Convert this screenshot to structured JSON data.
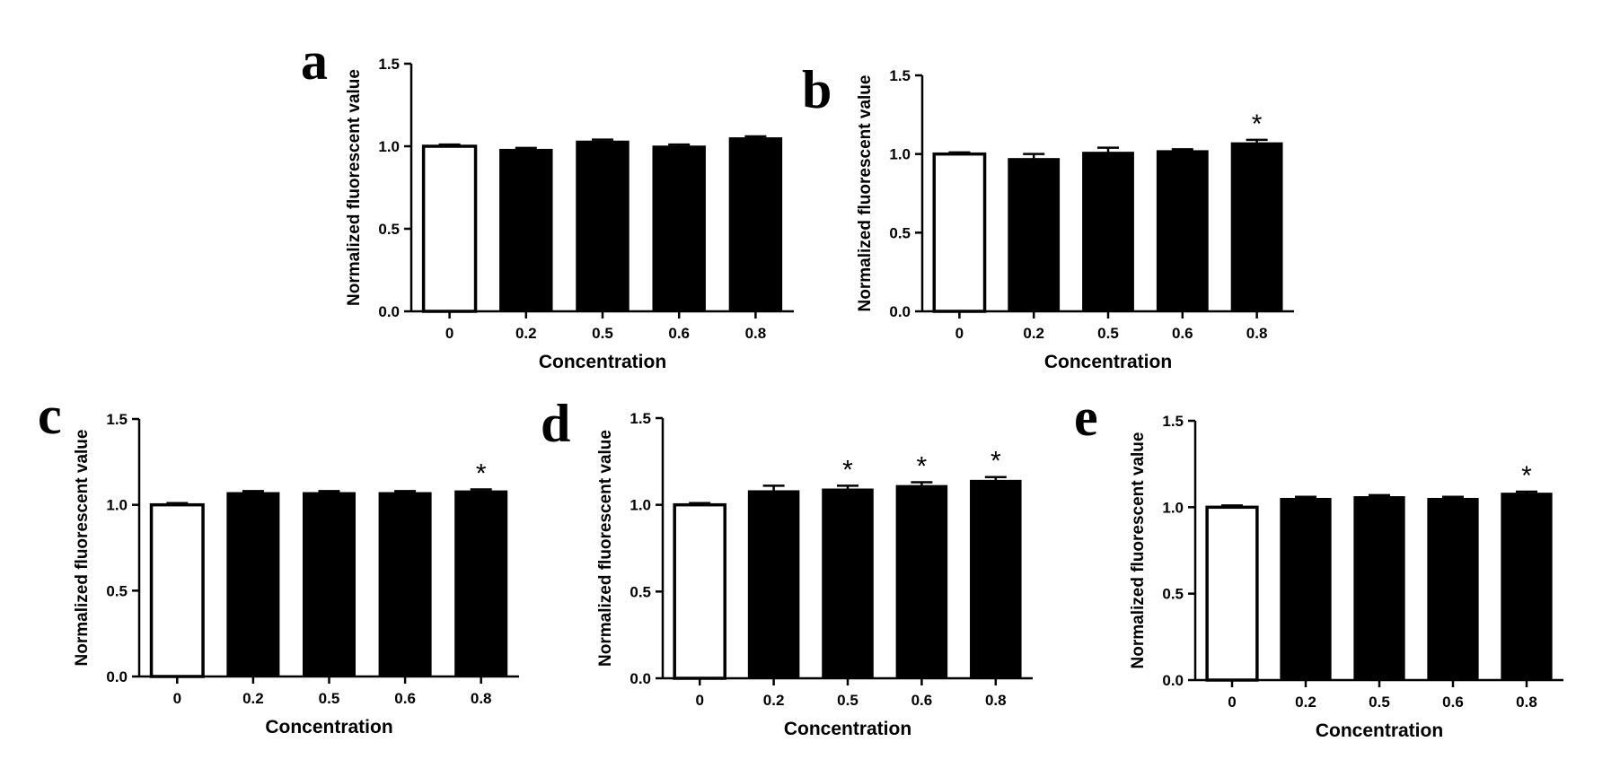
{
  "chart_data": [
    {
      "panel": "a",
      "type": "bar",
      "categories": [
        "0",
        "0.2",
        "0.5",
        "0.6",
        "0.8"
      ],
      "values": [
        1.0,
        0.98,
        1.03,
        1.0,
        1.05
      ],
      "errors": [
        0.01,
        0.01,
        0.01,
        0.01,
        0.01
      ],
      "significance": [
        "",
        "",
        "",
        "",
        ""
      ],
      "bar_colors": [
        "#ffffff",
        "#000000",
        "#000000",
        "#000000",
        "#000000"
      ],
      "xlabel": "Concentration",
      "ylabel": "Normalized fluorescent value",
      "ylim": [
        0,
        1.5
      ],
      "yticks": [
        "0.0",
        "0.5",
        "1.0",
        "1.5"
      ]
    },
    {
      "panel": "b",
      "type": "bar",
      "categories": [
        "0",
        "0.2",
        "0.5",
        "0.6",
        "0.8"
      ],
      "values": [
        1.0,
        0.97,
        1.01,
        1.02,
        1.07
      ],
      "errors": [
        0.01,
        0.03,
        0.03,
        0.01,
        0.02
      ],
      "significance": [
        "",
        "",
        "",
        "",
        "*"
      ],
      "bar_colors": [
        "#ffffff",
        "#000000",
        "#000000",
        "#000000",
        "#000000"
      ],
      "xlabel": "Concentration",
      "ylabel": "Normalized fluorescent value",
      "ylim": [
        0,
        1.5
      ],
      "yticks": [
        "0.0",
        "0.5",
        "1.0",
        "1.5"
      ]
    },
    {
      "panel": "c",
      "type": "bar",
      "categories": [
        "0",
        "0.2",
        "0.5",
        "0.6",
        "0.8"
      ],
      "values": [
        1.0,
        1.07,
        1.07,
        1.07,
        1.08
      ],
      "errors": [
        0.01,
        0.01,
        0.01,
        0.01,
        0.01
      ],
      "significance": [
        "",
        "",
        "",
        "",
        "*"
      ],
      "bar_colors": [
        "#ffffff",
        "#000000",
        "#000000",
        "#000000",
        "#000000"
      ],
      "xlabel": "Concentration",
      "ylabel": "Normalized fluorescent value",
      "ylim": [
        0,
        1.5
      ],
      "yticks": [
        "0.0",
        "0.5",
        "1.0",
        "1.5"
      ]
    },
    {
      "panel": "d",
      "type": "bar",
      "categories": [
        "0",
        "0.2",
        "0.5",
        "0.6",
        "0.8"
      ],
      "values": [
        1.0,
        1.08,
        1.09,
        1.11,
        1.14
      ],
      "errors": [
        0.01,
        0.03,
        0.02,
        0.02,
        0.02
      ],
      "significance": [
        "",
        "",
        "*",
        "*",
        "*"
      ],
      "bar_colors": [
        "#ffffff",
        "#000000",
        "#000000",
        "#000000",
        "#000000"
      ],
      "xlabel": "Concentration",
      "ylabel": "Normalized fluorescent value",
      "ylim": [
        0,
        1.5
      ],
      "yticks": [
        "0.0",
        "0.5",
        "1.0",
        "1.5"
      ]
    },
    {
      "panel": "e",
      "type": "bar",
      "categories": [
        "0",
        "0.2",
        "0.5",
        "0.6",
        "0.8"
      ],
      "values": [
        1.0,
        1.05,
        1.06,
        1.05,
        1.08
      ],
      "errors": [
        0.01,
        0.01,
        0.01,
        0.01,
        0.01
      ],
      "significance": [
        "",
        "",
        "",
        "",
        "*"
      ],
      "bar_colors": [
        "#ffffff",
        "#000000",
        "#000000",
        "#000000",
        "#000000"
      ],
      "xlabel": "Concentration",
      "ylabel": "Normalized fluorescent value",
      "ylim": [
        0,
        1.5
      ],
      "yticks": [
        "0.0",
        "0.5",
        "1.0",
        "1.5"
      ]
    }
  ]
}
